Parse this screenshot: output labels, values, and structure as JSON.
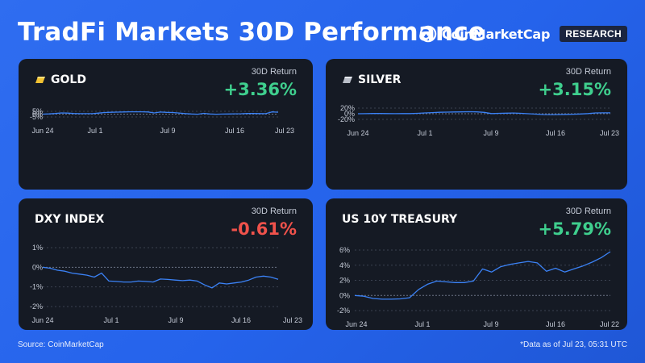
{
  "header": {
    "title": "TradFi Markets 30D Performance"
  },
  "brand": {
    "name": "CoinMarketCap",
    "badge": "RESEARCH"
  },
  "footer": {
    "source": "Source: CoinMarketCap",
    "note": "*Data as of Jul 23, 05:31 UTC"
  },
  "colors": {
    "positive": "#3fcf8e",
    "negative": "#f0524b",
    "line": "#3b82f6",
    "panel": "#151a24",
    "background": "#2563eb"
  },
  "panels": [
    {
      "name": "GOLD",
      "icon": "gold-bar-icon",
      "return_label": "30D Return",
      "return_value": "+3.36%",
      "direction": "positive"
    },
    {
      "name": "SILVER",
      "icon": "silver-bar-icon",
      "return_label": "30D Return",
      "return_value": "+3.15%",
      "direction": "positive"
    },
    {
      "name": "DXY INDEX",
      "icon": "",
      "return_label": "30D Return",
      "return_value": "-0.61%",
      "direction": "negative"
    },
    {
      "name": "US 10Y TREASURY",
      "icon": "",
      "return_label": "30D Return",
      "return_value": "+5.79%",
      "direction": "positive"
    }
  ],
  "chart_data": [
    {
      "type": "line",
      "title": "GOLD",
      "x_ticks": [
        "Jun 24",
        "Jul 1",
        "Jul 9",
        "Jul 16",
        "Jul 23"
      ],
      "y_ticks": [
        "5%",
        "0%",
        "-5%"
      ],
      "y_tick_values": [
        5,
        0,
        -5
      ],
      "ylim": [
        -5,
        5
      ],
      "zero_line": true,
      "series": [
        {
          "values": [
            0,
            0.5,
            1.2,
            2.1,
            1.8,
            1.2,
            0.8,
            0.8,
            0.9,
            1.9,
            2.8,
            3.3,
            3.6,
            3.9,
            4.1,
            4.2,
            4.1,
            3.9,
            2.1,
            3.7,
            3.1,
            2.8,
            2.0,
            1.0,
            0.3,
            -0.1,
            1.5,
            0.3,
            -0.1,
            0.1,
            0.3,
            0.6,
            0.7,
            1.2,
            1.2,
            1.0,
            0.9,
            4.0,
            3.4
          ]
        }
      ]
    },
    {
      "type": "line",
      "title": "SILVER",
      "x_ticks": [
        "Jun 24",
        "Jul 1",
        "Jul 9",
        "Jul 16",
        "Jul 23"
      ],
      "y_ticks": [
        "20%",
        "0%",
        "-20%"
      ],
      "y_tick_values": [
        20,
        0,
        -20
      ],
      "ylim": [
        -20,
        20
      ],
      "zero_line": true,
      "series": [
        {
          "values": [
            0,
            0.3,
            0.8,
            1.0,
            0.5,
            0.3,
            0.5,
            0.6,
            1.5,
            2.8,
            4.0,
            5.2,
            5.8,
            6.2,
            6.7,
            7.0,
            6.5,
            5.0,
            0.5,
            1.5,
            2.0,
            2.5,
            1.5,
            0.0,
            -1.5,
            -3.0,
            -3.2,
            -2.8,
            -2.3,
            -1.8,
            -0.8,
            0.5,
            3.0,
            3.2,
            3.15
          ]
        }
      ]
    },
    {
      "type": "line",
      "title": "DXY INDEX",
      "x_ticks": [
        "Jun 24",
        "Jul 1",
        "Jul 9",
        "Jul 16",
        "Jul 23"
      ],
      "y_ticks": [
        "1%",
        "0%",
        "-1%",
        "-2%"
      ],
      "y_tick_values": [
        1,
        0,
        -1,
        -2
      ],
      "ylim": [
        -2,
        1
      ],
      "zero_line": true,
      "series": [
        {
          "values": [
            0,
            -0.05,
            -0.15,
            -0.2,
            -0.3,
            -0.35,
            -0.4,
            -0.5,
            -0.3,
            -0.7,
            -0.72,
            -0.75,
            -0.75,
            -0.7,
            -0.72,
            -0.75,
            -0.6,
            -0.62,
            -0.65,
            -0.68,
            -0.65,
            -0.7,
            -0.9,
            -1.05,
            -0.8,
            -0.85,
            -0.8,
            -0.75,
            -0.65,
            -0.5,
            -0.45,
            -0.5,
            -0.61
          ]
        }
      ]
    },
    {
      "type": "line",
      "title": "US 10Y TREASURY",
      "x_ticks": [
        "Jun 24",
        "Jul 1",
        "Jul 9",
        "Jul 16",
        "Jul 22"
      ],
      "y_ticks": [
        "6%",
        "4%",
        "2%",
        "0%",
        "-2%"
      ],
      "y_tick_values": [
        6,
        4,
        2,
        0,
        -2
      ],
      "ylim": [
        -2,
        6
      ],
      "zero_line": true,
      "series": [
        {
          "values": [
            0,
            -0.1,
            -0.4,
            -0.5,
            -0.5,
            -0.45,
            -0.3,
            0.8,
            1.5,
            1.9,
            1.8,
            1.7,
            1.7,
            1.9,
            3.5,
            3.1,
            3.8,
            4.1,
            4.3,
            4.5,
            4.3,
            3.2,
            3.6,
            3.1,
            3.5,
            3.9,
            4.4,
            5.0,
            5.79
          ]
        }
      ]
    }
  ]
}
